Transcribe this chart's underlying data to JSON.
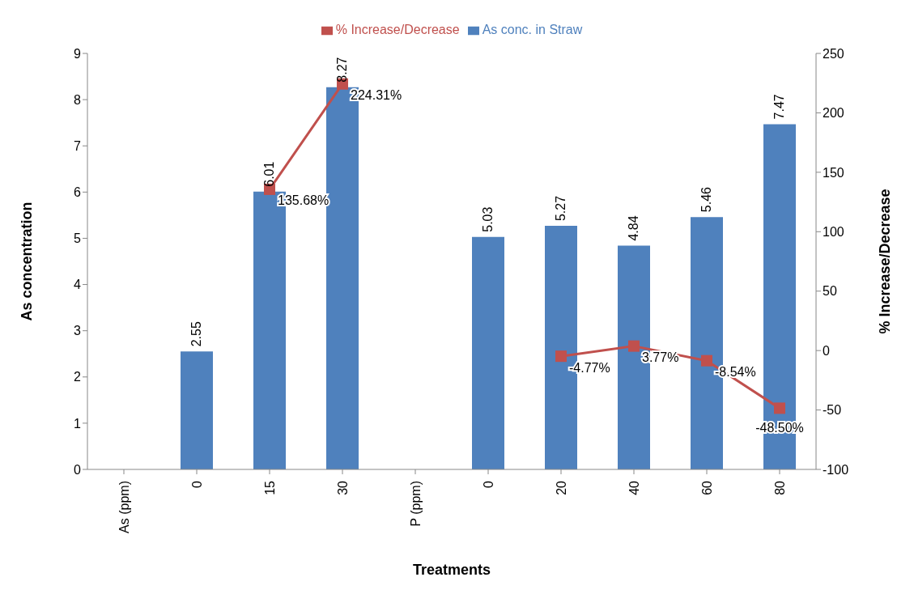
{
  "chart_data": {
    "type": "bar",
    "xlabel": "Treatments",
    "ylabel": "As concentration",
    "y2label": "% Increase/Decrease",
    "categories": [
      "As (ppm)",
      "0",
      "15",
      "30",
      "P (ppm)",
      "0",
      "20",
      "40",
      "60",
      "80"
    ],
    "series": [
      {
        "name": "As conc. in Straw",
        "color": "#4f81bd",
        "values": [
          null,
          2.55,
          6.01,
          8.27,
          null,
          5.03,
          5.27,
          4.84,
          5.46,
          7.47
        ],
        "value_labels": [
          null,
          "2.55",
          "6.01",
          "8.27",
          null,
          "5.03",
          "5.27",
          "4.84",
          "5.46",
          "7.47"
        ]
      },
      {
        "name": "% Increase/Decrease",
        "type": "line",
        "axis": "y2",
        "color": "#c0504d",
        "marker": "square",
        "values": [
          null,
          null,
          135.68,
          224.31,
          null,
          null,
          -4.77,
          3.77,
          -8.54,
          -48.5
        ],
        "value_labels": [
          null,
          null,
          "135.68%",
          "224.31%",
          null,
          null,
          "-4.77%",
          "3.77%",
          "-8.54%",
          "-48.50%"
        ]
      }
    ],
    "ylim": [
      0,
      9
    ],
    "yticks": [
      0,
      1,
      2,
      3,
      4,
      5,
      6,
      7,
      8,
      9
    ],
    "y2lim": [
      -100,
      250
    ],
    "y2ticks": [
      -100,
      -50,
      0,
      50,
      100,
      150,
      200,
      250
    ],
    "grid": false,
    "legend": "top"
  }
}
